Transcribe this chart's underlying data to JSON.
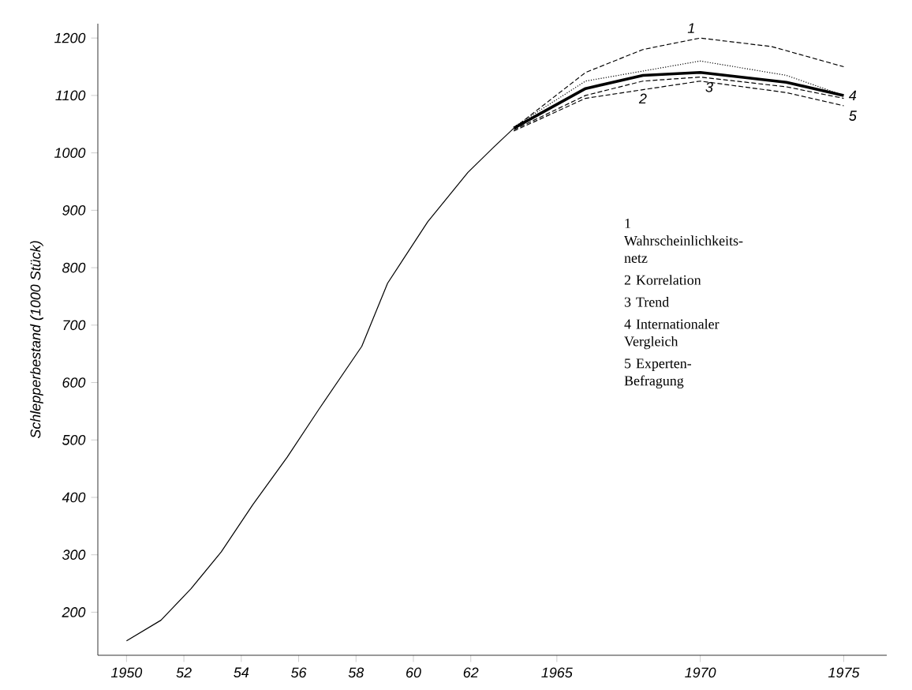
{
  "chart_data": {
    "type": "line",
    "ylabel": "Schlepperbestand (1000 Stück)",
    "xlim": [
      1949,
      1976.5
    ],
    "ylim": [
      125,
      1225
    ],
    "xticks": [
      1950,
      {
        "value": 1952,
        "label": "52"
      },
      {
        "value": 1954,
        "label": "54"
      },
      {
        "value": 1956,
        "label": "56"
      },
      {
        "value": 1958,
        "label": "58"
      },
      {
        "value": 1960,
        "label": "60"
      },
      {
        "value": 1962,
        "label": "62"
      },
      1965,
      1970,
      1975
    ],
    "yticks": [
      200,
      300,
      400,
      500,
      600,
      700,
      800,
      900,
      1000,
      1100,
      1200
    ],
    "series": [
      {
        "color": "#000000",
        "line_style": "solid",
        "x": [
          1950,
          1951.2,
          1952.25,
          1953.3,
          1954.4,
          1955.6,
          1956.7,
          1958.2,
          1959.1,
          1960.5,
          1961.9,
          1962.8,
          1963.5
        ],
        "values": [
          150,
          186,
          241,
          305,
          387,
          470,
          553,
          663,
          773,
          880,
          966,
          1010,
          1043
        ]
      },
      {
        "color": "#000000",
        "line_style": "dashed",
        "x": [
          1963.5,
          1966,
          1968,
          1970,
          1972.5,
          1975
        ],
        "values": [
          1043,
          1140,
          1180,
          1200,
          1185,
          1150
        ]
      },
      {
        "color": "#000000",
        "line_style": "solid",
        "x": [
          1963.5,
          1966,
          1968,
          1970,
          1973,
          1975
        ],
        "values": [
          1043,
          1112,
          1135,
          1140,
          1123,
          1100
        ]
      },
      {
        "color": "#000000",
        "line_style": "dashed",
        "x": [
          1963.5,
          1966,
          1968,
          1970,
          1973,
          1975
        ],
        "values": [
          1040,
          1100,
          1125,
          1132,
          1115,
          1095
        ]
      },
      {
        "color": "#000000",
        "line_style": "dotted",
        "x": [
          1963.5,
          1966,
          1970,
          1973,
          1975
        ],
        "values": [
          1045,
          1125,
          1160,
          1135,
          1100
        ]
      },
      {
        "color": "#000000",
        "line_style": "dashed",
        "x": [
          1963.5,
          1966,
          1970,
          1973,
          1975
        ],
        "values": [
          1038,
          1095,
          1125,
          1105,
          1082
        ]
      }
    ],
    "annotations": [
      {
        "text": "1",
        "x": 1970,
        "y": 1200
      },
      {
        "text": "2",
        "x": 1968,
        "y": 1112
      },
      {
        "text": "3",
        "x": 1970,
        "y": 1132
      },
      {
        "text": "4",
        "x": 1975,
        "y": 1100
      },
      {
        "text": "5",
        "x": 1975,
        "y": 1082
      },
      "1 Wahrscheinlichkeits-netz",
      "2 Korrelation",
      "3 Trend",
      "4 Internationaler Vergleich",
      "5 Experten-Befragung"
    ]
  }
}
